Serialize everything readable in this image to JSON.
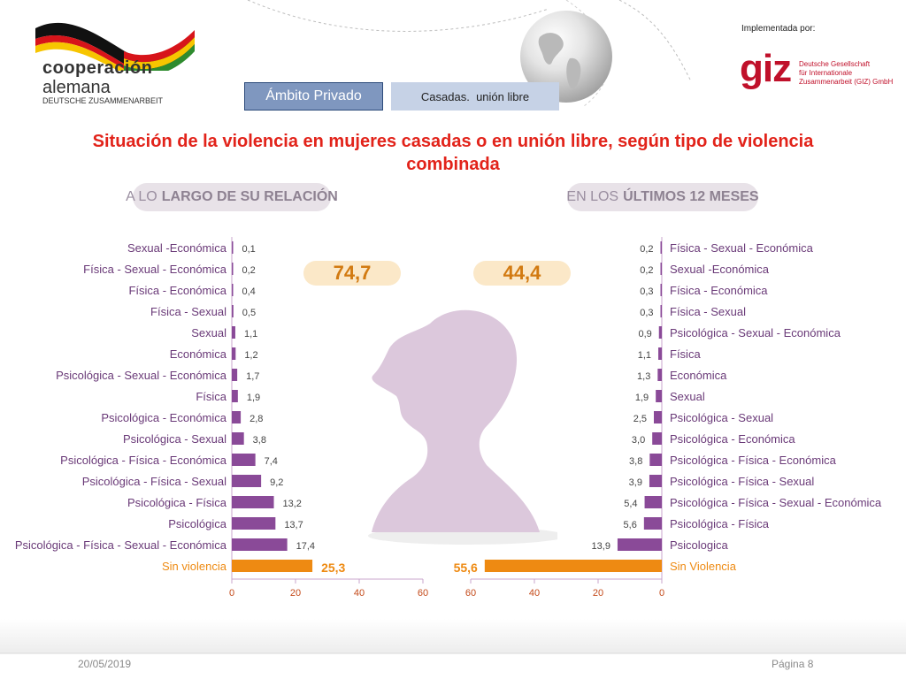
{
  "logo_left": {
    "line1": "cooperación",
    "line2": "alemana",
    "line3": "DEUTSCHE ZUSAMMENARBEIT"
  },
  "logo_right": {
    "implemented_by": "Implementada por:",
    "giz": "giz",
    "line1": "Deutsche Gesellschaft",
    "line2": "für Internationale",
    "line3": "Zusammenarbeit (GIZ) GmbH"
  },
  "tabs": {
    "scope": "Ámbito Privado",
    "group": "Casadas.  unión libre"
  },
  "title": "Situación de la violencia en mujeres casadas o en unión libre, según tipo de violencia combinada",
  "panels": {
    "left_prefix": "A LO",
    "left_bold": "LARGO DE SU RELACIÓN",
    "right_prefix": "EN LOS",
    "right_bold": "ÚLTIMOS 12 MESES",
    "left_total": "74,7",
    "right_total": "44,4"
  },
  "footer": {
    "date": "20/05/2019",
    "page": "Página 8"
  },
  "colors": {
    "purple": "#8a4a98",
    "orange": "#ee8a12",
    "title": "#e2231a",
    "silhouette": "#dcc8dc"
  },
  "chart_data": [
    {
      "type": "bar",
      "orientation": "horizontal",
      "title": "A LO LARGO DE SU RELACIÓN",
      "xlim": [
        0,
        60
      ],
      "xticks": [
        "0",
        "20",
        "40",
        "60"
      ],
      "categories": [
        "Sexual -Económica",
        "Física - Sexual - Económica",
        "Física - Económica",
        "Física - Sexual",
        "Sexual",
        "Económica",
        "Psicológica - Sexual - Económica",
        "Física",
        "Psicológica - Económica",
        "Psicológica - Sexual",
        "Psicológica - Física - Económica",
        "Psicológica - Física - Sexual",
        "Psicológica - Física",
        "Psicológica",
        "Psicológica - Física - Sexual - Económica",
        "Sin violencia"
      ],
      "values": [
        0.1,
        0.2,
        0.4,
        0.5,
        1.1,
        1.2,
        1.7,
        1.9,
        2.8,
        3.8,
        7.4,
        9.2,
        13.2,
        13.7,
        17.4,
        25.3
      ],
      "labels": [
        "0,1",
        "0,2",
        "0,4",
        "0,5",
        "1,1",
        "1,2",
        "1,7",
        "1,9",
        "2,8",
        "3,8",
        "7,4",
        "9,2",
        "13,2",
        "13,7",
        "17,4",
        "25,3"
      ],
      "highlight_last": true
    },
    {
      "type": "bar",
      "orientation": "horizontal",
      "title": "EN LOS ÚLTIMOS 12 MESES",
      "xlim": [
        0,
        60
      ],
      "reversed": true,
      "xticks": [
        "60",
        "40",
        "20",
        "0"
      ],
      "categories": [
        "Física - Sexual - Económica",
        "Sexual -Económica",
        "Física - Económica",
        "Física - Sexual",
        "Psicológica - Sexual - Económica",
        "Física",
        "Económica",
        "Sexual",
        "Psicológica - Sexual",
        "Psicológica - Económica",
        "Psicológica - Física - Económica",
        "Psicológica - Física - Sexual",
        "Psicológica - Física - Sexual - Económica",
        "Psicológica - Física",
        "Psicologica",
        "Sin Violencia"
      ],
      "values": [
        0.2,
        0.2,
        0.3,
        0.3,
        0.9,
        1.1,
        1.3,
        1.9,
        2.5,
        3.0,
        3.8,
        3.9,
        5.4,
        5.6,
        13.9,
        55.6
      ],
      "labels": [
        "0,2",
        "0,2",
        "0,3",
        "0,3",
        "0,9",
        "1,1",
        "1,3",
        "1,9",
        "2,5",
        "3,0",
        "3,8",
        "3,9",
        "5,4",
        "5,6",
        "13,9",
        "55,6"
      ],
      "highlight_last": true
    }
  ]
}
